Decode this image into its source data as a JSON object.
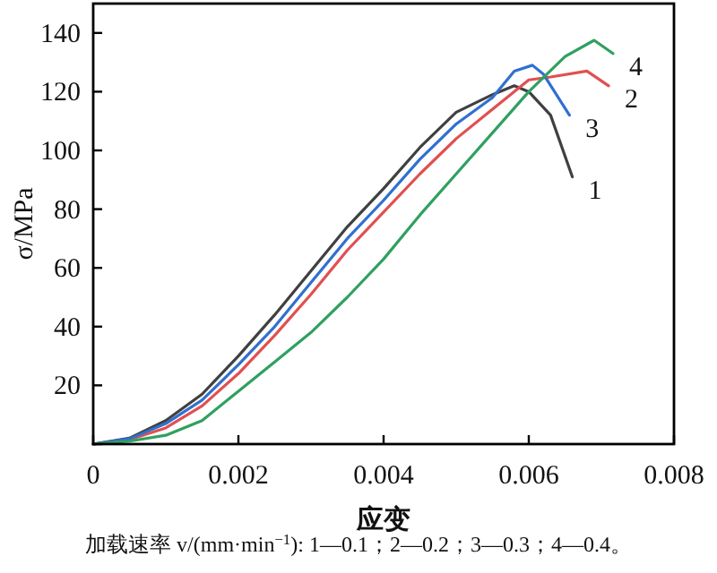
{
  "chart_data": {
    "type": "line",
    "xlabel": "应变",
    "ylabel": "σ/MPa",
    "xlim": [
      0,
      0.008
    ],
    "ylim": [
      0,
      150
    ],
    "xticks": [
      0,
      0.002,
      0.004,
      0.006,
      0.008
    ],
    "yticks": [
      {
        "value": 0,
        "label": null
      },
      20,
      40,
      60,
      80,
      100,
      120,
      140
    ],
    "grid": false,
    "legend": false,
    "marker": "none",
    "line_style": "solid",
    "series": [
      {
        "name": "1",
        "color": "#404040",
        "x": [
          0,
          0.0005,
          0.001,
          0.0015,
          0.002,
          0.0025,
          0.003,
          0.0035,
          0.004,
          0.0045,
          0.005,
          0.0055,
          0.0058,
          0.006,
          0.0063,
          0.0066
        ],
        "values": [
          0,
          2,
          8,
          17,
          30,
          44,
          59,
          74,
          87,
          101,
          113,
          119,
          122,
          120,
          112,
          91
        ]
      },
      {
        "name": "2",
        "color": "#e05050",
        "x": [
          0,
          0.0005,
          0.001,
          0.0015,
          0.002,
          0.0025,
          0.003,
          0.0035,
          0.004,
          0.0045,
          0.005,
          0.0055,
          0.006,
          0.0063,
          0.0068,
          0.0071
        ],
        "values": [
          0,
          1.5,
          5.5,
          13,
          24,
          37,
          51,
          66,
          79,
          92,
          104,
          114,
          124,
          125,
          127,
          122
        ]
      },
      {
        "name": "3",
        "color": "#3070d0",
        "x": [
          0,
          0.0005,
          0.001,
          0.0015,
          0.002,
          0.0025,
          0.003,
          0.0035,
          0.004,
          0.0045,
          0.005,
          0.0055,
          0.0058,
          0.00605,
          0.0062,
          0.00656
        ],
        "values": [
          0,
          1.8,
          7,
          15,
          27,
          40,
          55,
          70,
          83,
          97,
          109,
          118,
          127,
          129,
          126,
          112
        ]
      },
      {
        "name": "4",
        "color": "#30a060",
        "x": [
          0,
          0.0005,
          0.001,
          0.0015,
          0.002,
          0.0025,
          0.003,
          0.0035,
          0.004,
          0.0045,
          0.005,
          0.0055,
          0.006,
          0.0065,
          0.0069,
          0.00716
        ],
        "values": [
          0,
          1,
          3,
          8,
          18,
          28,
          38,
          50,
          63,
          78,
          92,
          106,
          120,
          132,
          137.5,
          133
        ]
      }
    ],
    "annotations": [
      "加载速率 v/(mm·min$^{−1}$): 1—0.1；2—0.2；3—0.3；4—0.4。"
    ]
  }
}
